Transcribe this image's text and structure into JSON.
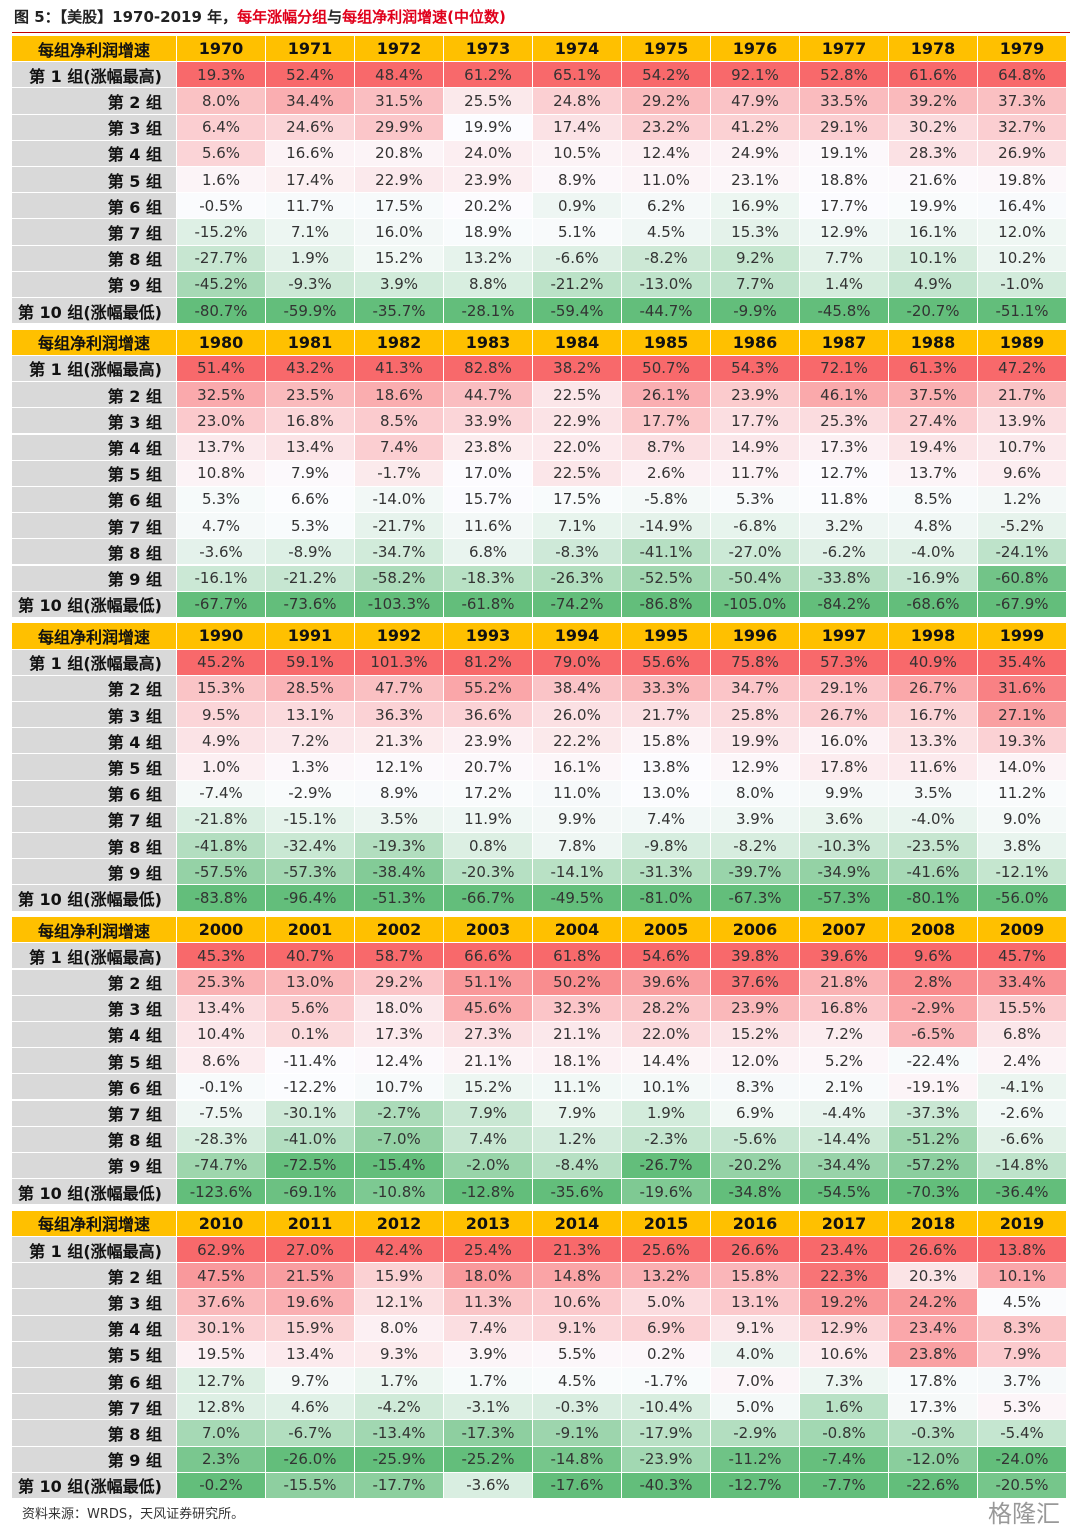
{
  "title": {
    "part1": "图 5：【美股】1970-2019 年，",
    "part2": "每年涨幅分组",
    "part3": "与",
    "part4": "每组净利润增速(中位数)"
  },
  "table": {
    "corner": "每组净利润增速",
    "row_labels": [
      "第 1 组(涨幅最高)",
      "第 2 组",
      "第 3 组",
      "第 4 组",
      "第 5 组",
      "第 6 组",
      "第 7 组",
      "第 8 组",
      "第 9 组",
      "第 10 组(涨幅最低)"
    ],
    "blocks": [
      {
        "years": [
          1970,
          1971,
          1972,
          1973,
          1974,
          1975,
          1976,
          1977,
          1978,
          1979
        ],
        "rows": [
          [
            "19.3%",
            "52.4%",
            "48.4%",
            "61.2%",
            "65.1%",
            "54.2%",
            "92.1%",
            "52.8%",
            "61.6%",
            "64.8%"
          ],
          [
            "8.0%",
            "34.4%",
            "31.5%",
            "25.5%",
            "24.8%",
            "29.2%",
            "47.9%",
            "33.5%",
            "39.2%",
            "37.3%"
          ],
          [
            "6.4%",
            "24.6%",
            "29.9%",
            "19.9%",
            "17.4%",
            "23.2%",
            "41.2%",
            "29.1%",
            "30.2%",
            "32.7%"
          ],
          [
            "5.6%",
            "16.6%",
            "20.8%",
            "24.0%",
            "10.5%",
            "12.4%",
            "24.9%",
            "19.1%",
            "28.3%",
            "26.9%"
          ],
          [
            "1.6%",
            "17.4%",
            "22.9%",
            "23.9%",
            "8.9%",
            "11.0%",
            "23.1%",
            "18.8%",
            "21.6%",
            "19.8%"
          ],
          [
            "-0.5%",
            "11.7%",
            "17.5%",
            "20.2%",
            "0.9%",
            "6.2%",
            "16.9%",
            "17.7%",
            "19.9%",
            "16.4%"
          ],
          [
            "-15.2%",
            "7.1%",
            "16.0%",
            "18.9%",
            "5.1%",
            "4.5%",
            "15.3%",
            "12.9%",
            "16.1%",
            "12.0%"
          ],
          [
            "-27.7%",
            "1.9%",
            "15.2%",
            "13.2%",
            "-6.6%",
            "-8.2%",
            "9.2%",
            "7.7%",
            "10.1%",
            "10.2%"
          ],
          [
            "-45.2%",
            "-9.3%",
            "3.9%",
            "8.8%",
            "-21.2%",
            "-13.0%",
            "7.7%",
            "1.4%",
            "4.9%",
            "-1.0%"
          ],
          [
            "-80.7%",
            "-59.9%",
            "-35.7%",
            "-28.1%",
            "-59.4%",
            "-44.7%",
            "-9.9%",
            "-45.8%",
            "-20.7%",
            "-51.1%"
          ]
        ]
      },
      {
        "years": [
          1980,
          1981,
          1982,
          1983,
          1984,
          1985,
          1986,
          1987,
          1988,
          1989
        ],
        "rows": [
          [
            "51.4%",
            "43.2%",
            "41.3%",
            "82.8%",
            "38.2%",
            "50.7%",
            "54.3%",
            "72.1%",
            "61.3%",
            "47.2%"
          ],
          [
            "32.5%",
            "23.5%",
            "18.6%",
            "44.7%",
            "22.5%",
            "26.1%",
            "23.9%",
            "46.1%",
            "37.5%",
            "21.7%"
          ],
          [
            "23.0%",
            "16.8%",
            "8.5%",
            "33.9%",
            "22.9%",
            "17.7%",
            "17.7%",
            "25.3%",
            "27.4%",
            "13.9%"
          ],
          [
            "13.7%",
            "13.4%",
            "7.4%",
            "23.8%",
            "22.0%",
            "8.7%",
            "14.9%",
            "17.3%",
            "19.4%",
            "10.7%"
          ],
          [
            "10.8%",
            "7.9%",
            "-1.7%",
            "17.0%",
            "22.5%",
            "2.6%",
            "11.7%",
            "12.7%",
            "13.7%",
            "9.6%"
          ],
          [
            "5.3%",
            "6.6%",
            "-14.0%",
            "15.7%",
            "17.5%",
            "-5.8%",
            "5.3%",
            "11.8%",
            "8.5%",
            "1.2%"
          ],
          [
            "4.7%",
            "5.3%",
            "-21.7%",
            "11.6%",
            "7.1%",
            "-14.9%",
            "-6.8%",
            "3.2%",
            "4.8%",
            "-5.2%"
          ],
          [
            "-3.6%",
            "-8.9%",
            "-34.7%",
            "6.8%",
            "-8.3%",
            "-41.1%",
            "-27.0%",
            "-6.2%",
            "-4.0%",
            "-24.1%"
          ],
          [
            "-16.1%",
            "-21.2%",
            "-58.2%",
            "-18.3%",
            "-26.3%",
            "-52.5%",
            "-50.4%",
            "-33.8%",
            "-16.9%",
            "-60.8%"
          ],
          [
            "-67.7%",
            "-73.6%",
            "-103.3%",
            "-61.8%",
            "-74.2%",
            "-86.8%",
            "-105.0%",
            "-84.2%",
            "-68.6%",
            "-67.9%"
          ]
        ]
      },
      {
        "years": [
          1990,
          1991,
          1992,
          1993,
          1994,
          1995,
          1996,
          1997,
          1998,
          1999
        ],
        "rows": [
          [
            "45.2%",
            "59.1%",
            "101.3%",
            "81.2%",
            "79.0%",
            "55.6%",
            "75.8%",
            "57.3%",
            "40.9%",
            "35.4%"
          ],
          [
            "15.3%",
            "28.5%",
            "47.7%",
            "55.2%",
            "38.4%",
            "33.3%",
            "34.7%",
            "29.1%",
            "26.7%",
            "31.6%"
          ],
          [
            "9.5%",
            "13.1%",
            "36.3%",
            "36.6%",
            "26.0%",
            "21.7%",
            "25.8%",
            "26.7%",
            "16.7%",
            "27.1%"
          ],
          [
            "4.9%",
            "7.2%",
            "21.3%",
            "23.9%",
            "22.2%",
            "15.8%",
            "19.9%",
            "16.0%",
            "13.3%",
            "19.3%"
          ],
          [
            "1.0%",
            "1.3%",
            "12.1%",
            "20.7%",
            "16.1%",
            "13.8%",
            "12.9%",
            "17.8%",
            "11.6%",
            "14.0%"
          ],
          [
            "-7.4%",
            "-2.9%",
            "8.9%",
            "17.2%",
            "11.0%",
            "13.0%",
            "8.0%",
            "9.9%",
            "3.5%",
            "11.2%"
          ],
          [
            "-21.8%",
            "-15.1%",
            "3.5%",
            "11.9%",
            "9.9%",
            "7.4%",
            "3.9%",
            "3.6%",
            "-4.0%",
            "9.0%"
          ],
          [
            "-41.8%",
            "-32.4%",
            "-19.3%",
            "0.8%",
            "7.8%",
            "-9.8%",
            "-8.2%",
            "-10.3%",
            "-23.5%",
            "3.8%"
          ],
          [
            "-57.5%",
            "-57.3%",
            "-38.4%",
            "-20.3%",
            "-14.1%",
            "-31.3%",
            "-39.7%",
            "-34.9%",
            "-41.6%",
            "-12.1%"
          ],
          [
            "-83.8%",
            "-96.4%",
            "-51.3%",
            "-66.7%",
            "-49.5%",
            "-81.0%",
            "-67.3%",
            "-57.3%",
            "-80.1%",
            "-56.0%"
          ]
        ]
      },
      {
        "years": [
          2000,
          2001,
          2002,
          2003,
          2004,
          2005,
          2006,
          2007,
          2008,
          2009
        ],
        "rows": [
          [
            "45.3%",
            "40.7%",
            "58.7%",
            "66.6%",
            "61.8%",
            "54.6%",
            "39.8%",
            "39.6%",
            "9.6%",
            "45.7%"
          ],
          [
            "25.3%",
            "13.0%",
            "29.2%",
            "51.1%",
            "50.2%",
            "39.6%",
            "37.6%",
            "21.8%",
            "2.8%",
            "33.4%"
          ],
          [
            "13.4%",
            "5.6%",
            "18.0%",
            "45.6%",
            "32.3%",
            "28.2%",
            "23.9%",
            "16.8%",
            "-2.9%",
            "15.5%"
          ],
          [
            "10.4%",
            "0.1%",
            "17.3%",
            "27.3%",
            "21.1%",
            "22.0%",
            "15.2%",
            "7.2%",
            "-6.5%",
            "6.8%"
          ],
          [
            "8.6%",
            "-11.4%",
            "12.4%",
            "21.1%",
            "18.1%",
            "14.4%",
            "12.0%",
            "5.2%",
            "-22.4%",
            "2.4%"
          ],
          [
            "-0.1%",
            "-12.2%",
            "10.7%",
            "15.2%",
            "11.1%",
            "10.1%",
            "8.3%",
            "2.1%",
            "-19.1%",
            "-4.1%"
          ],
          [
            "-7.5%",
            "-30.1%",
            "-2.7%",
            "7.9%",
            "7.9%",
            "1.9%",
            "6.9%",
            "-4.4%",
            "-37.3%",
            "-2.6%"
          ],
          [
            "-28.3%",
            "-41.0%",
            "-7.0%",
            "7.4%",
            "1.2%",
            "-2.3%",
            "-5.6%",
            "-14.4%",
            "-51.2%",
            "-6.6%"
          ],
          [
            "-74.7%",
            "-72.5%",
            "-15.4%",
            "-2.0%",
            "-8.4%",
            "-26.7%",
            "-20.2%",
            "-34.4%",
            "-57.2%",
            "-14.8%"
          ],
          [
            "-123.6%",
            "-69.1%",
            "-10.8%",
            "-12.8%",
            "-35.6%",
            "-19.6%",
            "-34.8%",
            "-54.5%",
            "-70.3%",
            "-36.4%"
          ]
        ]
      },
      {
        "years": [
          2010,
          2011,
          2012,
          2013,
          2014,
          2015,
          2016,
          2017,
          2018,
          2019
        ],
        "rows": [
          [
            "62.9%",
            "27.0%",
            "42.4%",
            "25.4%",
            "21.3%",
            "25.6%",
            "26.6%",
            "23.4%",
            "26.6%",
            "13.8%"
          ],
          [
            "47.5%",
            "21.5%",
            "15.9%",
            "18.0%",
            "14.8%",
            "13.2%",
            "15.8%",
            "22.3%",
            "20.3%",
            "10.1%"
          ],
          [
            "37.6%",
            "19.6%",
            "12.1%",
            "11.3%",
            "10.6%",
            "5.0%",
            "13.1%",
            "19.2%",
            "24.2%",
            "4.5%"
          ],
          [
            "30.1%",
            "15.9%",
            "8.0%",
            "7.4%",
            "9.1%",
            "6.9%",
            "9.1%",
            "12.9%",
            "23.4%",
            "8.3%"
          ],
          [
            "19.5%",
            "13.4%",
            "9.3%",
            "3.9%",
            "5.5%",
            "0.2%",
            "4.0%",
            "10.6%",
            "23.8%",
            "7.9%"
          ],
          [
            "12.7%",
            "9.7%",
            "1.7%",
            "1.7%",
            "4.5%",
            "-1.7%",
            "7.0%",
            "7.3%",
            "17.8%",
            "3.7%"
          ],
          [
            "12.8%",
            "4.6%",
            "-4.2%",
            "-3.1%",
            "-0.3%",
            "-10.4%",
            "5.0%",
            "1.6%",
            "17.3%",
            "5.3%"
          ],
          [
            "7.0%",
            "-6.7%",
            "-13.4%",
            "-17.3%",
            "-9.1%",
            "-17.9%",
            "-2.9%",
            "-0.8%",
            "-0.3%",
            "-5.4%"
          ],
          [
            "2.3%",
            "-26.0%",
            "-25.9%",
            "-25.2%",
            "-14.8%",
            "-23.9%",
            "-11.2%",
            "-7.4%",
            "-12.0%",
            "-24.0%"
          ],
          [
            "-0.2%",
            "-15.5%",
            "-17.7%",
            "-3.6%",
            "-17.6%",
            "-40.3%",
            "-12.7%",
            "-7.7%",
            "-22.6%",
            "-20.5%"
          ]
        ]
      }
    ]
  },
  "source": "资料来源：WRDS，天风证券研究所。",
  "watermark": "格隆汇"
}
